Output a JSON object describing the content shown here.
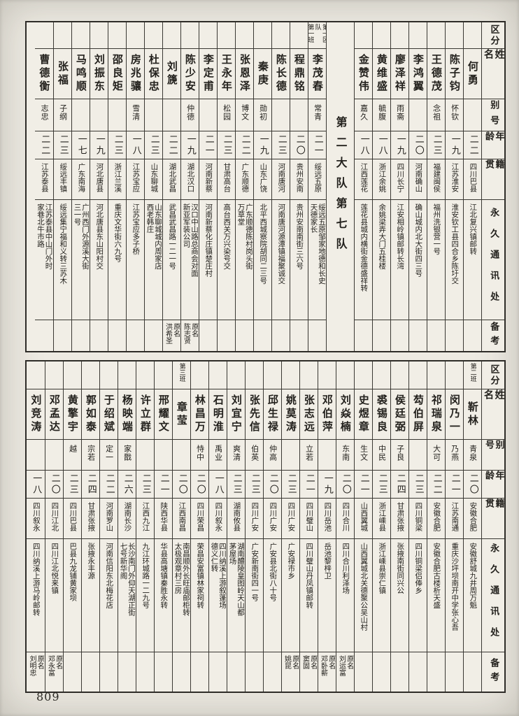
{
  "page_number": "809",
  "row_labels": [
    "区分",
    "姓名",
    "别号",
    "年龄",
    "籍贯",
    "永久通讯处",
    "备考"
  ],
  "tables": [
    {
      "id": "top",
      "columns": [
        {
          "qufen": "",
          "name": "何勇",
          "hao": "",
          "age": "二二",
          "native": "四川巴县",
          "addr": "江北复兴镇邮转",
          "note": ""
        },
        {
          "qufen": "",
          "name": "陈子钧",
          "hao": "怀钦",
          "age": "一九",
          "native": "江苏淮安",
          "addr": "淮安钦工县四合乡陈圩交",
          "note": ""
        },
        {
          "qufen": "",
          "name": "王德茂",
          "hao": "念祖",
          "age": "二三",
          "native": "福建闽侯",
          "addr": "福州洗银营一号",
          "note": ""
        },
        {
          "qufen": "",
          "name": "李鸿翼",
          "hao": "",
          "age": "二〇",
          "native": "河南确山",
          "addr": "确山城内北大街四三号",
          "note": ""
        },
        {
          "qufen": "",
          "name": "廖泽祥",
          "hao": "雨斋",
          "age": "一九",
          "native": "四川长宁",
          "addr": "江安相岭镇邮转长湾",
          "note": ""
        },
        {
          "qufen": "",
          "name": "黄维盛",
          "hao": "毓腹",
          "age": "一八",
          "native": "浙江余姚",
          "addr": "余姚梁弄大门五桂楼",
          "note": ""
        },
        {
          "qufen": "",
          "name": "金赞伟",
          "hao": "嘉久",
          "age": "一八",
          "native": "江西莲花",
          "addr": "莲花县城内横街金德盛祥转",
          "note": ""
        },
        {
          "section": "第二大队第七队"
        },
        {
          "qufen": "第一区队\n第一班",
          "name": "李茂春",
          "hao": "常青",
          "age": "二一",
          "native": "绥远五原",
          "addr": "绥远五原邹家地德和长史\n天德家长",
          "note": ""
        },
        {
          "qufen": "",
          "name": "程鼎铭",
          "hao": "",
          "age": "二〇",
          "native": "贵州安南",
          "addr": "贵州安南南街三六号",
          "note": ""
        },
        {
          "qufen": "",
          "name": "陈长德",
          "hao": "",
          "age": "二三",
          "native": "河南唐河",
          "addr": "河南唐河源潭镇福聚诚交",
          "note": ""
        },
        {
          "qufen": "",
          "name": "秦庚",
          "hao": "勋初",
          "age": "一九",
          "native": "山东广饶",
          "addr": "北平西城察院胡同二三号",
          "note": ""
        },
        {
          "qufen": "",
          "name": "张恩泽",
          "hao": "博文",
          "age": "二二",
          "native": "广东顺德",
          "addr": "广东顺德陈村岗头街\n万草堂",
          "note": ""
        },
        {
          "qufen": "",
          "name": "王永年",
          "hao": "松园",
          "age": "二三",
          "native": "甘肃高台",
          "addr": "高台西关万兴染号交",
          "note": ""
        },
        {
          "qufen": "",
          "name": "李定甫",
          "hao": "",
          "age": "二一",
          "native": "河南新蔡",
          "addr": "河南新蔡化庄镇楚庄村",
          "note": ""
        },
        {
          "qufen": "",
          "name": "陈少安",
          "hao": "仲德",
          "age": "一九",
          "native": "湖北汉口",
          "addr": "汉口中山路总商会对面\n新亚军装公司",
          "note": "原名\n陈志贤"
        },
        {
          "qufen": "",
          "name": "刘篪",
          "hao": "",
          "age": "二二",
          "native": "湖北武昌",
          "addr": "武昌武昌路一二一号",
          "note": "原名\n洪希圣"
        },
        {
          "qufen": "",
          "name": "杜保忠",
          "hao": "",
          "age": "二三",
          "native": "山东聊城",
          "addr": "山东聊城城内周家店\n西老韩庄",
          "note": ""
        },
        {
          "qufen": "",
          "name": "房兆骧",
          "hao": "雪清",
          "age": "一八",
          "native": "江苏宝应",
          "addr": "江苏宝应多子桥",
          "note": ""
        },
        {
          "qufen": "",
          "name": "邵良矩",
          "hao": "",
          "age": "二三",
          "native": "浙江兰溪",
          "addr": "重庆文华街六九号",
          "note": ""
        },
        {
          "qufen": "",
          "name": "刘振东",
          "hao": "",
          "age": "一九",
          "native": "河北唐县",
          "addr": "河北唐县东山阳村交",
          "note": ""
        },
        {
          "qufen": "",
          "name": "马鸣顺",
          "hao": "",
          "age": "一七",
          "native": "广东南海",
          "addr": "广州西门外源溪大街\n三一号",
          "note": ""
        },
        {
          "qufen": "",
          "name": "张福",
          "hao": "子纲",
          "age": "二三",
          "native": "绥远丰镇",
          "addr": "绥远集宁福和义转三苏木",
          "note": ""
        },
        {
          "qufen": "",
          "name": "曹德衡",
          "hao": "志忠",
          "age": "二二",
          "native": "江苏泰县",
          "addr": "江苏泰县中山门外时\n家巷北牛市路",
          "note": ""
        }
      ]
    },
    {
      "id": "bot",
      "columns": [
        {
          "qufen": "第二班",
          "name": "靳林",
          "hao": "青泉",
          "age": "二〇",
          "native": "安徽合肥",
          "addr": "安徽舒城九井周万魁",
          "note": ""
        },
        {
          "qufen": "",
          "name": "闵乃一",
          "hao": "乃燕",
          "age": "二一",
          "native": "江苏南通",
          "addr": "重庆沙坪坝南开中学张心吾",
          "note": ""
        },
        {
          "qufen": "",
          "name": "祁瑞泉",
          "hao": "大可",
          "age": "二二",
          "native": "安徽合肥",
          "addr": "安徽合肥古楼析天盛",
          "note": ""
        },
        {
          "qufen": "",
          "name": "芶伯屏",
          "hao": "",
          "age": "二三",
          "native": "四川铜梁",
          "addr": "四川铜梁侣俸乡",
          "note": ""
        },
        {
          "qufen": "",
          "name": "侯廷弼",
          "hao": "子良",
          "age": "二四",
          "native": "甘肃张掖",
          "addr": "张掖南街同兴公",
          "note": ""
        },
        {
          "qufen": "",
          "name": "裘锡良",
          "hao": "中民",
          "age": "二三",
          "native": "浙江嵊县",
          "addr": "浙江嵊县崇仁镇",
          "note": ""
        },
        {
          "qufen": "",
          "name": "史煜章",
          "hao": "生文",
          "age": "二一",
          "native": "山西翼城",
          "addr": "山西翼城北关德聚公吴山村",
          "note": ""
        },
        {
          "qufen": "",
          "name": "刘焱楠",
          "hao": "东南",
          "age": "二〇",
          "native": "四川合川",
          "addr": "四川合川利泽场",
          "note": "原名\n刘运富"
        },
        {
          "qufen": "",
          "name": "邓伯萍",
          "hao": "",
          "age": "一九",
          "native": "四川岳池",
          "addr": "岳池黎梓卫",
          "note": "原名\n邓卧薪"
        },
        {
          "qufen": "",
          "name": "张志远",
          "hao": "立若",
          "age": "二一",
          "native": "四川璧山",
          "addr": "四川璧山丹凤镇邮转",
          "note": "原名\n窦固"
        },
        {
          "qufen": "",
          "name": "姚莫涛",
          "hao": "",
          "age": "二三",
          "native": "四川广安",
          "addr": "广安禄市乡",
          "note": "原名\n姚昆"
        },
        {
          "qufen": "",
          "name": "邱生禄",
          "hao": "仲高",
          "age": "二〇",
          "native": "四川广安",
          "addr": "广安县北街八十号",
          "note": ""
        },
        {
          "qufen": "",
          "name": "张先信",
          "hao": "伯英",
          "age": "二三",
          "native": "四川广安",
          "addr": "广安新南街四一号",
          "note": ""
        },
        {
          "qufen": "",
          "name": "刘宜宁",
          "hao": "爽清",
          "age": "二三",
          "native": "湖南攸县",
          "addr": "湖南醴陵皇图岭天山都\n茅屋场",
          "note": ""
        },
        {
          "qufen": "",
          "name": "石明淮",
          "hao": "禹业",
          "age": "一八",
          "native": "四川叙永",
          "addr": "四川纳溪上游叙蓬场\n德义仁转",
          "note": ""
        },
        {
          "qufen": "",
          "name": "林昌万",
          "hao": "恃中",
          "age": "二〇",
          "native": "四川荣昌",
          "addr": "荣昌安富镇林家祠转",
          "note": ""
        },
        {
          "qufen": "第三班",
          "name": "章莹",
          "hao": "",
          "age": "二〇",
          "native": "江西南昌",
          "addr": "南昌顺外长旺庙邮柜转\n太极观章村三房",
          "note": ""
        },
        {
          "qufen": "",
          "name": "邢耀文",
          "hao": "",
          "age": "二一",
          "native": "陕西华县",
          "addr": "华县高塘镇秦胜永转",
          "note": ""
        },
        {
          "qufen": "",
          "name": "许立群",
          "hao": "",
          "age": "二三",
          "native": "江西九江",
          "addr": "九江环城路一二九号",
          "note": ""
        },
        {
          "qufen": "",
          "name": "杨映端",
          "hao": "家戬",
          "age": "二六",
          "native": "湖南长沙",
          "addr": "长沙南门外仰天湖正街\n七号新华阁",
          "note": ""
        },
        {
          "qufen": "",
          "name": "于绍斌",
          "hao": "定一",
          "age": "二二",
          "native": "河南罗山",
          "addr": "河南信阳东北梅花店",
          "note": ""
        },
        {
          "qufen": "",
          "name": "郭如泰",
          "hao": "宗若",
          "age": "二四",
          "native": "甘肃张掖",
          "addr": "张掖永丰源",
          "note": ""
        },
        {
          "qufen": "",
          "name": "黄擎宇",
          "hao": "越",
          "age": "二三",
          "native": "四川巴县",
          "addr": "巴县九龙铺黄家坝",
          "note": ""
        },
        {
          "qufen": "",
          "name": "邓孟达",
          "hao": "",
          "age": "二〇",
          "native": "四川江北",
          "addr": "四川江北悦来镇",
          "note": "原名\n邓永富"
        },
        {
          "qufen": "",
          "name": "刘竞涛",
          "hao": "",
          "age": "一八",
          "native": "四川叙永",
          "addr": "四川纳溪上游马岭邮转",
          "note": "原名\n刘明忠"
        }
      ]
    }
  ]
}
